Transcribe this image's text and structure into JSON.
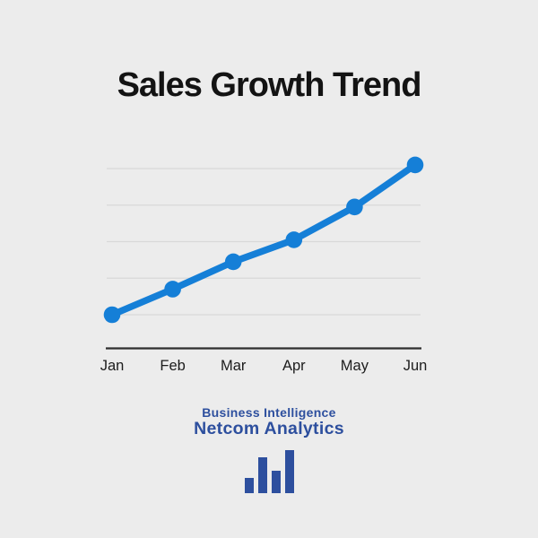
{
  "title": "Sales Growth Trend",
  "chart_data": {
    "type": "line",
    "title": "Sales Growth Trend",
    "categories": [
      "Jan",
      "Feb",
      "Mar",
      "Apr",
      "May",
      "Jun"
    ],
    "values": [
      10,
      17,
      24.5,
      30.5,
      39.5,
      51
    ],
    "xlabel": "",
    "ylabel": "",
    "y_gridlines": [
      10,
      20,
      30,
      40,
      50
    ],
    "ylim": [
      8,
      53
    ],
    "grid": "horizontal",
    "legend": "none",
    "marker": "circle",
    "y_tick_labels_visible": false
  },
  "colors": {
    "background": "#ececec",
    "line": "#157fd7",
    "marker": "#157fd7",
    "gridline": "#d9d9d9",
    "axis": "#2e2e2e",
    "title_text": "#131313",
    "brand": "#2d4f9e"
  },
  "branding": {
    "tagline": "Business Intelligence",
    "name": "Netcom Analytics",
    "logo_icon": "bar-chart-icon"
  }
}
